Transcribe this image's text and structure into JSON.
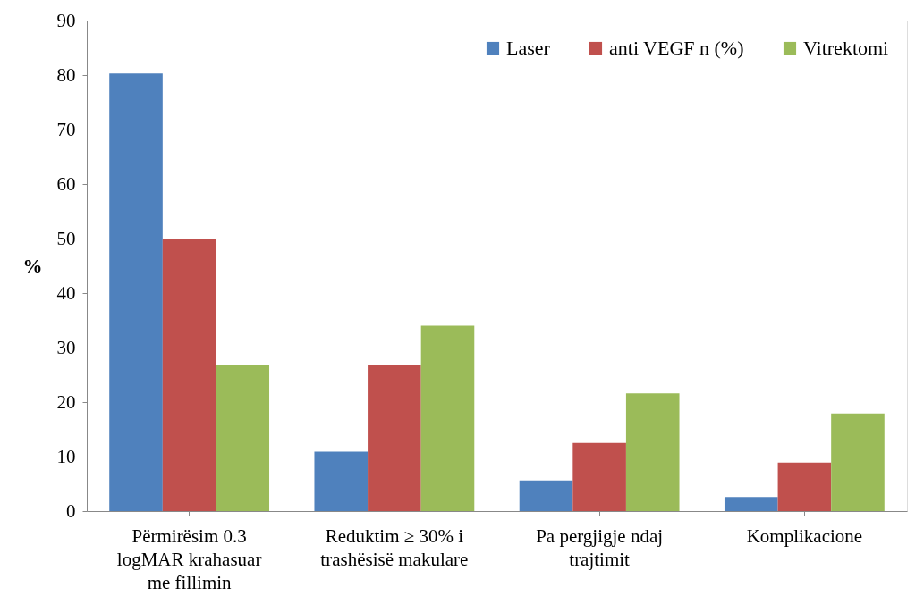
{
  "chart_data": {
    "type": "bar",
    "ylabel": "%",
    "categories": [
      "Përmirësim  0.3\nlogMAR krahasuar\nme fillimin",
      "Reduktim ≥ 30% i\ntrashësisë makulare",
      "Pa pergjigje ndaj\ntrajtimit",
      "Komplikacione"
    ],
    "series": [
      {
        "name": "Laser",
        "color": "#4f81bd",
        "values": [
          80.3,
          10.9,
          5.6,
          2.6
        ]
      },
      {
        "name": "anti VEGF n (%)",
        "color": "#c0504d",
        "values": [
          50,
          26.8,
          12.5,
          8.9
        ]
      },
      {
        "name": "Vitrektomi",
        "color": "#9bbb59",
        "values": [
          26.8,
          34,
          21.6,
          17.9
        ]
      }
    ],
    "ylim": [
      0,
      90
    ],
    "yticks": [
      0,
      10,
      20,
      30,
      40,
      50,
      60,
      70,
      80,
      90
    ],
    "grid": false,
    "legend": "top right"
  }
}
